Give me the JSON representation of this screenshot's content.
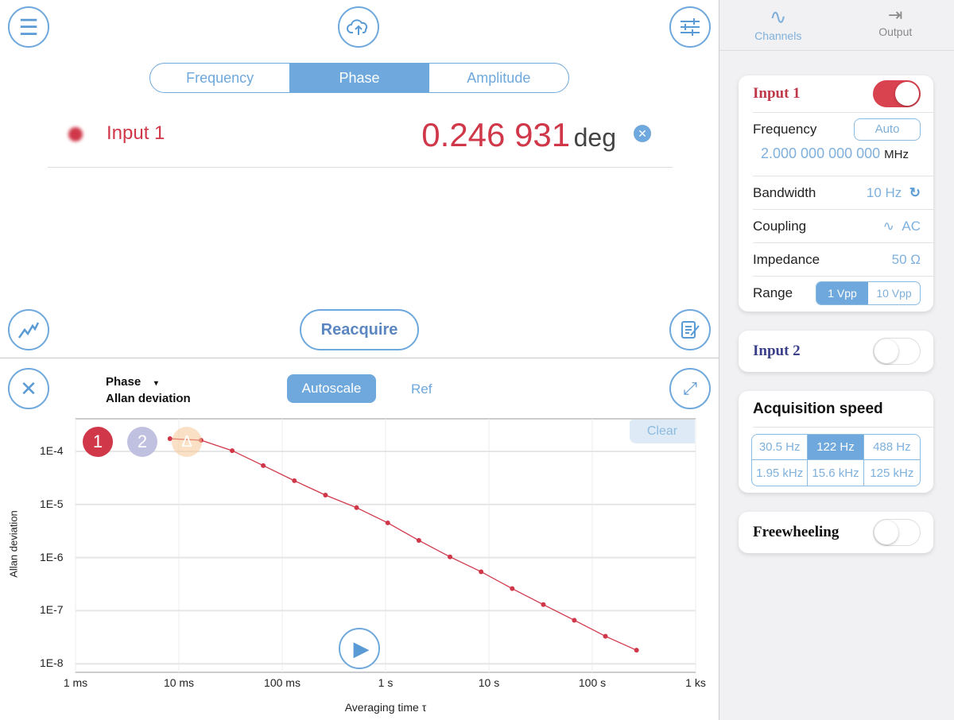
{
  "toolbar": {
    "menu_icon": "hamburger-icon",
    "upload_icon": "cloud-upload-icon",
    "settings_icon": "sliders-icon"
  },
  "tabs": [
    {
      "label": "Frequency",
      "active": false
    },
    {
      "label": "Phase",
      "active": true
    },
    {
      "label": "Amplitude",
      "active": false
    }
  ],
  "reading": {
    "channel": "Input 1",
    "value": "0.246 931",
    "unit": "deg",
    "color": "#d0384a"
  },
  "reacquire_label": "Reacquire",
  "plot_header": {
    "quantity": "Phase",
    "dropdown": "▾",
    "statistic": "Allan deviation",
    "autoscale_label": "Autoscale",
    "ref_label": "Ref",
    "clear_label": "Clear",
    "badges": [
      "1",
      "2",
      "Δ"
    ]
  },
  "chart_data": {
    "type": "line",
    "xlabel": "Averaging time τ",
    "ylabel": "Allan deviation",
    "x_scale": "log",
    "y_scale": "log",
    "x_ticks": [
      "1 ms",
      "10 ms",
      "100 ms",
      "1 s",
      "10 s",
      "100 s",
      "1 ks"
    ],
    "y_ticks": [
      "1E-4",
      "1E-5",
      "1E-6",
      "1E-7",
      "1E-8"
    ],
    "xlim_s": [
      0.001,
      1000
    ],
    "ylim": [
      6.9e-09,
      0.00041
    ],
    "grid": true,
    "series": [
      {
        "color": "#d0384a",
        "x_s": [
          0.0082,
          0.0164,
          0.0328,
          0.0655,
          0.131,
          0.262,
          0.524,
          1.05,
          2.1,
          4.2,
          8.4,
          16.8,
          33.6,
          67,
          134,
          268
        ],
        "values": [
          0.000173,
          0.000162,
          0.000103,
          5.4e-05,
          2.8e-05,
          1.5e-05,
          8.7e-06,
          4.5e-06,
          2.1e-06,
          1.03e-06,
          5.4e-07,
          2.6e-07,
          1.3e-07,
          6.6e-08,
          3.3e-08,
          1.8e-08
        ]
      }
    ]
  },
  "right_tabs": [
    {
      "label": "Channels",
      "icon": "sine-wave-icon",
      "active": true
    },
    {
      "label": "Output",
      "icon": "output-icon",
      "active": false
    }
  ],
  "input1": {
    "title": "Input 1",
    "enabled": true,
    "frequency_label": "Frequency",
    "auto_label": "Auto",
    "frequency_value": "2.000 000 000 000",
    "frequency_unit": "MHz",
    "bandwidth_label": "Bandwidth",
    "bandwidth_value": "10 Hz",
    "coupling_label": "Coupling",
    "coupling_value": "AC",
    "impedance_label": "Impedance",
    "impedance_value": "50 Ω",
    "range_label": "Range",
    "range_options": [
      "1 Vpp",
      "10 Vpp"
    ],
    "range_selected": "1 Vpp"
  },
  "input2": {
    "title": "Input 2",
    "enabled": false
  },
  "acquisition": {
    "title": "Acquisition speed",
    "options": [
      "30.5 Hz",
      "122 Hz",
      "488 Hz",
      "1.95 kHz",
      "15.6 kHz",
      "125 kHz"
    ],
    "selected": "122 Hz"
  },
  "freewheeling": {
    "title": "Freewheeling",
    "enabled": false
  },
  "colors": {
    "accent": "#6fa8dc",
    "input1": "#d0384a",
    "input2": "#3a3f8a"
  }
}
